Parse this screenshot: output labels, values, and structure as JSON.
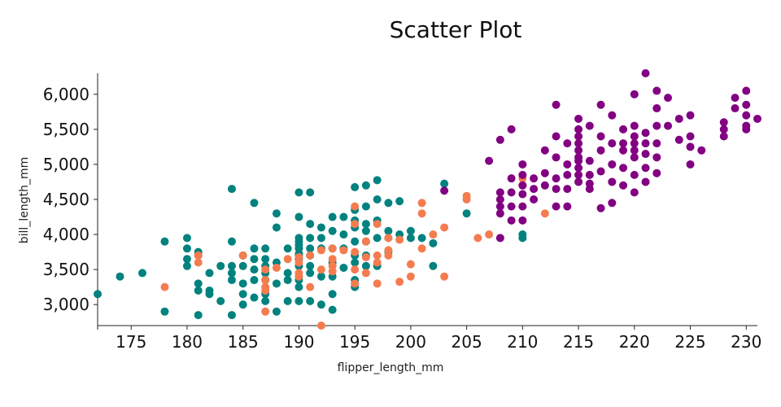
{
  "chart_data": {
    "type": "scatter",
    "title": "Scatter Plot",
    "xlabel": "flipper_length_mm",
    "ylabel": "bill_length_mm",
    "xlim": [
      172,
      231
    ],
    "ylim": [
      2700,
      6300
    ],
    "x_ticks": [
      175,
      180,
      185,
      190,
      195,
      200,
      205,
      210,
      215,
      220,
      225,
      230
    ],
    "x_tick_labels": [
      "175",
      "180",
      "185",
      "190",
      "195",
      "200",
      "205",
      "210",
      "215",
      "220",
      "225",
      "230"
    ],
    "y_ticks": [
      3000,
      3500,
      4000,
      4500,
      5000,
      5500,
      6000
    ],
    "y_tick_labels": [
      "3,000",
      "3,500",
      "4,000",
      "4,500",
      "5,000",
      "5,500",
      "6,000"
    ],
    "grid": false,
    "series": [
      {
        "color": "#00827F",
        "points": [
          [
            172,
            3150
          ],
          [
            174,
            3400
          ],
          [
            176,
            3450
          ],
          [
            178,
            3900
          ],
          [
            178,
            2900
          ],
          [
            180,
            3950
          ],
          [
            180,
            3800
          ],
          [
            180,
            3550
          ],
          [
            180,
            3650
          ],
          [
            181,
            3300
          ],
          [
            181,
            3200
          ],
          [
            181,
            2850
          ],
          [
            181,
            3700
          ],
          [
            181,
            3750
          ],
          [
            182,
            3450
          ],
          [
            182,
            3200
          ],
          [
            182,
            3150
          ],
          [
            183,
            3550
          ],
          [
            183,
            3050
          ],
          [
            184,
            4650
          ],
          [
            184,
            3900
          ],
          [
            184,
            3550
          ],
          [
            184,
            3450
          ],
          [
            184,
            3350
          ],
          [
            184,
            2850
          ],
          [
            185,
            3700
          ],
          [
            185,
            3550
          ],
          [
            185,
            3300
          ],
          [
            185,
            3150
          ],
          [
            185,
            3000
          ],
          [
            186,
            4450
          ],
          [
            186,
            3800
          ],
          [
            186,
            3650
          ],
          [
            186,
            3500
          ],
          [
            186,
            3350
          ],
          [
            186,
            3100
          ],
          [
            187,
            3800
          ],
          [
            187,
            3650
          ],
          [
            187,
            3550
          ],
          [
            187,
            3450
          ],
          [
            187,
            3350
          ],
          [
            187,
            3150
          ],
          [
            187,
            3050
          ],
          [
            188,
            4300
          ],
          [
            188,
            4100
          ],
          [
            188,
            3600
          ],
          [
            188,
            3300
          ],
          [
            188,
            2900
          ],
          [
            189,
            3800
          ],
          [
            189,
            3450
          ],
          [
            189,
            3350
          ],
          [
            189,
            3050
          ],
          [
            190,
            4600
          ],
          [
            190,
            4250
          ],
          [
            190,
            3950
          ],
          [
            190,
            3900
          ],
          [
            190,
            3850
          ],
          [
            190,
            3800
          ],
          [
            190,
            3725
          ],
          [
            190,
            3700
          ],
          [
            190,
            3650
          ],
          [
            190,
            3550
          ],
          [
            190,
            3400
          ],
          [
            190,
            3350
          ],
          [
            190,
            3250
          ],
          [
            190,
            3050
          ],
          [
            191,
            4600
          ],
          [
            191,
            4150
          ],
          [
            191,
            3950
          ],
          [
            191,
            3800
          ],
          [
            191,
            3700
          ],
          [
            191,
            3550
          ],
          [
            191,
            3450
          ],
          [
            191,
            3050
          ],
          [
            192,
            4100
          ],
          [
            192,
            3950
          ],
          [
            192,
            3800
          ],
          [
            192,
            3400
          ],
          [
            192,
            3000
          ],
          [
            193,
            4250
          ],
          [
            193,
            4050
          ],
          [
            193,
            3800
          ],
          [
            193,
            3600
          ],
          [
            193,
            3400
          ],
          [
            193,
            3150
          ],
          [
            193,
            2925
          ],
          [
            194,
            4250
          ],
          [
            194,
            4000
          ],
          [
            194,
            3800
          ],
          [
            194,
            3525
          ],
          [
            195,
            4675
          ],
          [
            195,
            4350
          ],
          [
            195,
            4200
          ],
          [
            195,
            4100
          ],
          [
            195,
            3900
          ],
          [
            195,
            3700
          ],
          [
            195,
            3600
          ],
          [
            195,
            3350
          ],
          [
            195,
            3250
          ],
          [
            196,
            4700
          ],
          [
            196,
            4400
          ],
          [
            196,
            4150
          ],
          [
            196,
            4050
          ],
          [
            196,
            3900
          ],
          [
            196,
            3700
          ],
          [
            196,
            3550
          ],
          [
            197,
            4775
          ],
          [
            197,
            4500
          ],
          [
            197,
            4200
          ],
          [
            197,
            3950
          ],
          [
            197,
            3550
          ],
          [
            198,
            4450
          ],
          [
            198,
            4050
          ],
          [
            198,
            3950
          ],
          [
            198,
            3750
          ],
          [
            199,
            4475
          ],
          [
            199,
            4000
          ],
          [
            200,
            4050
          ],
          [
            200,
            3950
          ],
          [
            201,
            3950
          ],
          [
            202,
            3875
          ],
          [
            202,
            3550
          ],
          [
            203,
            4725
          ],
          [
            205,
            4300
          ],
          [
            210,
            4000
          ],
          [
            210,
            3950
          ]
        ]
      },
      {
        "color": "#F47C4F",
        "points": [
          [
            178,
            3250
          ],
          [
            181,
            3700
          ],
          [
            181,
            3600
          ],
          [
            185,
            3700
          ],
          [
            187,
            3500
          ],
          [
            187,
            3350
          ],
          [
            187,
            3250
          ],
          [
            187,
            3200
          ],
          [
            187,
            2900
          ],
          [
            188,
            3525
          ],
          [
            189,
            3650
          ],
          [
            190,
            3675
          ],
          [
            190,
            3600
          ],
          [
            190,
            3450
          ],
          [
            190,
            3400
          ],
          [
            191,
            3700
          ],
          [
            191,
            3250
          ],
          [
            192,
            3775
          ],
          [
            192,
            3500
          ],
          [
            192,
            2700
          ],
          [
            193,
            3800
          ],
          [
            193,
            3650
          ],
          [
            193,
            3550
          ],
          [
            193,
            3475
          ],
          [
            194,
            3775
          ],
          [
            195,
            4400
          ],
          [
            195,
            4150
          ],
          [
            195,
            3750
          ],
          [
            195,
            3500
          ],
          [
            195,
            3300
          ],
          [
            196,
            3900
          ],
          [
            196,
            3675
          ],
          [
            196,
            3450
          ],
          [
            197,
            4150
          ],
          [
            197,
            3700
          ],
          [
            197,
            3600
          ],
          [
            197,
            3300
          ],
          [
            198,
            3950
          ],
          [
            198,
            3775
          ],
          [
            198,
            3700
          ],
          [
            199,
            3925
          ],
          [
            199,
            3325
          ],
          [
            200,
            3575
          ],
          [
            200,
            3400
          ],
          [
            201,
            4450
          ],
          [
            201,
            4300
          ],
          [
            201,
            3800
          ],
          [
            202,
            4000
          ],
          [
            203,
            4100
          ],
          [
            203,
            3400
          ],
          [
            205,
            4550
          ],
          [
            205,
            4500
          ],
          [
            206,
            3950
          ],
          [
            207,
            4000
          ],
          [
            210,
            4800
          ],
          [
            210,
            4700
          ],
          [
            212,
            4300
          ]
        ]
      },
      {
        "color": "#820082",
        "points": [
          [
            203,
            4625
          ],
          [
            207,
            5050
          ],
          [
            208,
            5350
          ],
          [
            208,
            4600
          ],
          [
            208,
            4500
          ],
          [
            208,
            4400
          ],
          [
            208,
            4300
          ],
          [
            208,
            3950
          ],
          [
            209,
            5500
          ],
          [
            209,
            4800
          ],
          [
            209,
            4600
          ],
          [
            209,
            4400
          ],
          [
            209,
            4200
          ],
          [
            210,
            5000
          ],
          [
            210,
            4850
          ],
          [
            210,
            4700
          ],
          [
            210,
            4575
          ],
          [
            210,
            4400
          ],
          [
            210,
            4200
          ],
          [
            211,
            4800
          ],
          [
            211,
            4650
          ],
          [
            211,
            4500
          ],
          [
            212,
            5200
          ],
          [
            212,
            4875
          ],
          [
            212,
            4700
          ],
          [
            213,
            5850
          ],
          [
            213,
            5400
          ],
          [
            213,
            5100
          ],
          [
            213,
            4800
          ],
          [
            213,
            4650
          ],
          [
            213,
            4400
          ],
          [
            214,
            5300
          ],
          [
            214,
            5000
          ],
          [
            214,
            4850
          ],
          [
            214,
            4650
          ],
          [
            214,
            4400
          ],
          [
            215,
            5650
          ],
          [
            215,
            5500
          ],
          [
            215,
            5400
          ],
          [
            215,
            5300
          ],
          [
            215,
            5200
          ],
          [
            215,
            5100
          ],
          [
            215,
            5050
          ],
          [
            215,
            4950
          ],
          [
            215,
            4850
          ],
          [
            215,
            4750
          ],
          [
            216,
            5550
          ],
          [
            216,
            5050
          ],
          [
            216,
            4850
          ],
          [
            216,
            4725
          ],
          [
            216,
            4650
          ],
          [
            217,
            5850
          ],
          [
            217,
            5400
          ],
          [
            217,
            5200
          ],
          [
            217,
            4900
          ],
          [
            217,
            4375
          ],
          [
            218,
            5700
          ],
          [
            218,
            5300
          ],
          [
            218,
            5000
          ],
          [
            218,
            4750
          ],
          [
            218,
            4450
          ],
          [
            219,
            5500
          ],
          [
            219,
            5300
          ],
          [
            219,
            5200
          ],
          [
            219,
            4950
          ],
          [
            219,
            4700
          ],
          [
            220,
            6000
          ],
          [
            220,
            5550
          ],
          [
            220,
            5400
          ],
          [
            220,
            5300
          ],
          [
            220,
            5200
          ],
          [
            220,
            5100
          ],
          [
            220,
            4850
          ],
          [
            220,
            4600
          ],
          [
            221,
            6300
          ],
          [
            221,
            5450
          ],
          [
            221,
            5300
          ],
          [
            221,
            5150
          ],
          [
            221,
            4950
          ],
          [
            221,
            4750
          ],
          [
            222,
            6050
          ],
          [
            222,
            5800
          ],
          [
            222,
            5550
          ],
          [
            222,
            5300
          ],
          [
            222,
            5100
          ],
          [
            222,
            4875
          ],
          [
            223,
            5950
          ],
          [
            223,
            5550
          ],
          [
            224,
            5650
          ],
          [
            224,
            5350
          ],
          [
            225,
            5700
          ],
          [
            225,
            5400
          ],
          [
            225,
            5250
          ],
          [
            225,
            5000
          ],
          [
            226,
            5200
          ],
          [
            228,
            5600
          ],
          [
            228,
            5500
          ],
          [
            228,
            5400
          ],
          [
            229,
            5950
          ],
          [
            229,
            5800
          ],
          [
            230,
            6050
          ],
          [
            230,
            5850
          ],
          [
            230,
            5700
          ],
          [
            230,
            5550
          ],
          [
            230,
            5500
          ],
          [
            231,
            5650
          ]
        ]
      }
    ]
  }
}
